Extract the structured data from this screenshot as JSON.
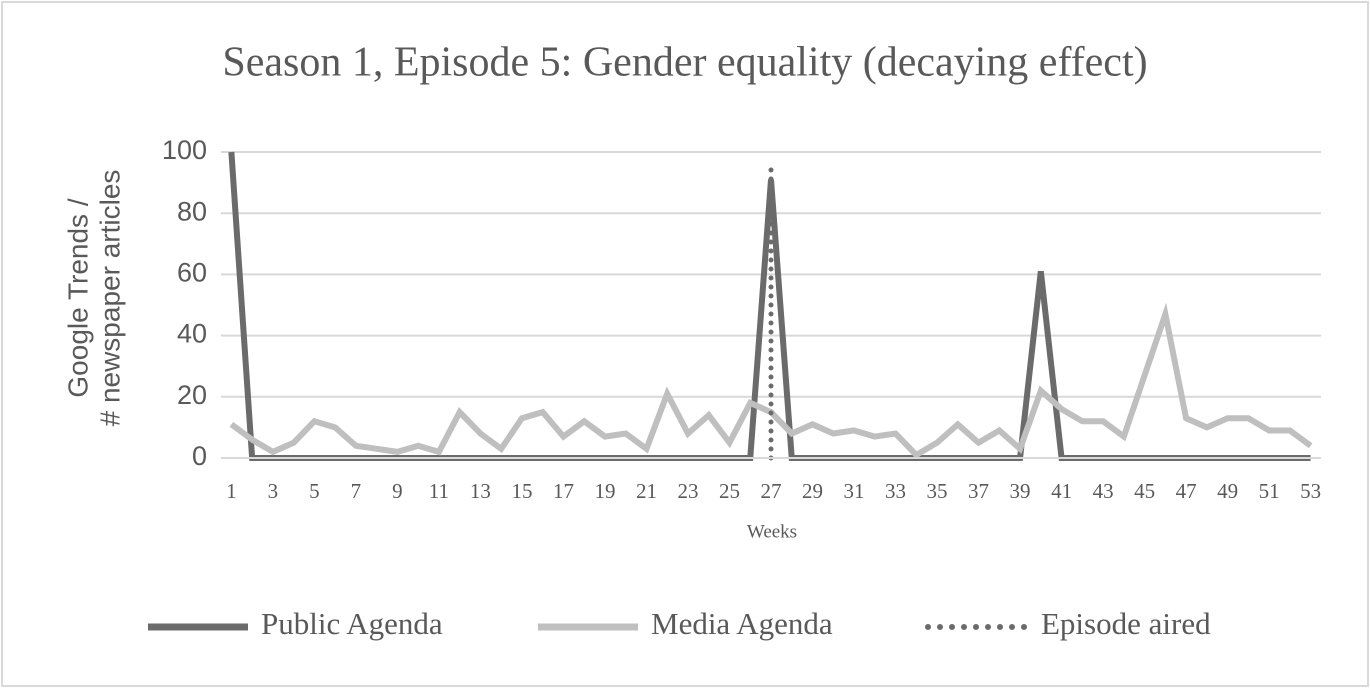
{
  "chart_data": {
    "type": "line",
    "title": "Season 1, Episode 5: Gender equality (decaying effect)",
    "xlabel": "Weeks",
    "ylabel": [
      "Google Trends /",
      "# newspaper articles"
    ],
    "categories": [
      "1",
      null,
      "3",
      null,
      "5",
      null,
      "7",
      null,
      "9",
      null,
      "11",
      null,
      "13",
      null,
      "15",
      null,
      "17",
      null,
      "19",
      null,
      "21",
      null,
      "23",
      null,
      "25",
      null,
      "27",
      null,
      "29",
      null,
      "31",
      null,
      "33",
      null,
      "35",
      null,
      "37",
      null,
      "39",
      null,
      "41",
      null,
      "43",
      null,
      "45",
      null,
      "47",
      null,
      "49",
      null,
      "51",
      null,
      "53"
    ],
    "series": [
      {
        "name": "Public Agenda",
        "color": "#6b6b6b",
        "style": "solid",
        "values": [
          100,
          0,
          0,
          0,
          0,
          0,
          0,
          0,
          0,
          0,
          0,
          0,
          0,
          0,
          0,
          0,
          0,
          0,
          0,
          0,
          0,
          0,
          0,
          0,
          0,
          0,
          91,
          0,
          0,
          0,
          0,
          0,
          0,
          0,
          0,
          0,
          0,
          0,
          0,
          61,
          0,
          0,
          0,
          0,
          0,
          0,
          0,
          0,
          0,
          0,
          0,
          0,
          0
        ]
      },
      {
        "name": "Media Agenda",
        "color": "#bfbfbf",
        "style": "solid",
        "values": [
          11,
          6,
          2,
          5,
          12,
          10,
          4,
          3,
          2,
          4,
          2,
          15,
          8,
          3,
          13,
          15,
          7,
          12,
          7,
          8,
          3,
          21,
          8,
          14,
          5,
          18,
          15,
          8,
          11,
          8,
          9,
          7,
          8,
          1,
          5,
          11,
          5,
          9,
          3,
          22,
          16,
          12,
          12,
          7,
          27,
          47,
          13,
          10,
          13,
          13,
          9,
          9,
          4
        ]
      },
      {
        "name": "Episode aired",
        "color": "#6b6b6b",
        "style": "dotted-vertical",
        "values": [
          null,
          null,
          null,
          null,
          null,
          null,
          null,
          null,
          null,
          null,
          null,
          null,
          null,
          null,
          null,
          null,
          null,
          null,
          null,
          null,
          null,
          null,
          null,
          null,
          null,
          null,
          97,
          null,
          null,
          null,
          null,
          null,
          null,
          null,
          null,
          null,
          null,
          null,
          null,
          null,
          null,
          null,
          null,
          null,
          null,
          null,
          null,
          null,
          null,
          null,
          null,
          null,
          null
        ]
      }
    ],
    "ylim": [
      0,
      100
    ],
    "yticks": [
      0,
      20,
      40,
      60,
      80,
      100
    ],
    "grid": true,
    "legend": "bottom"
  }
}
